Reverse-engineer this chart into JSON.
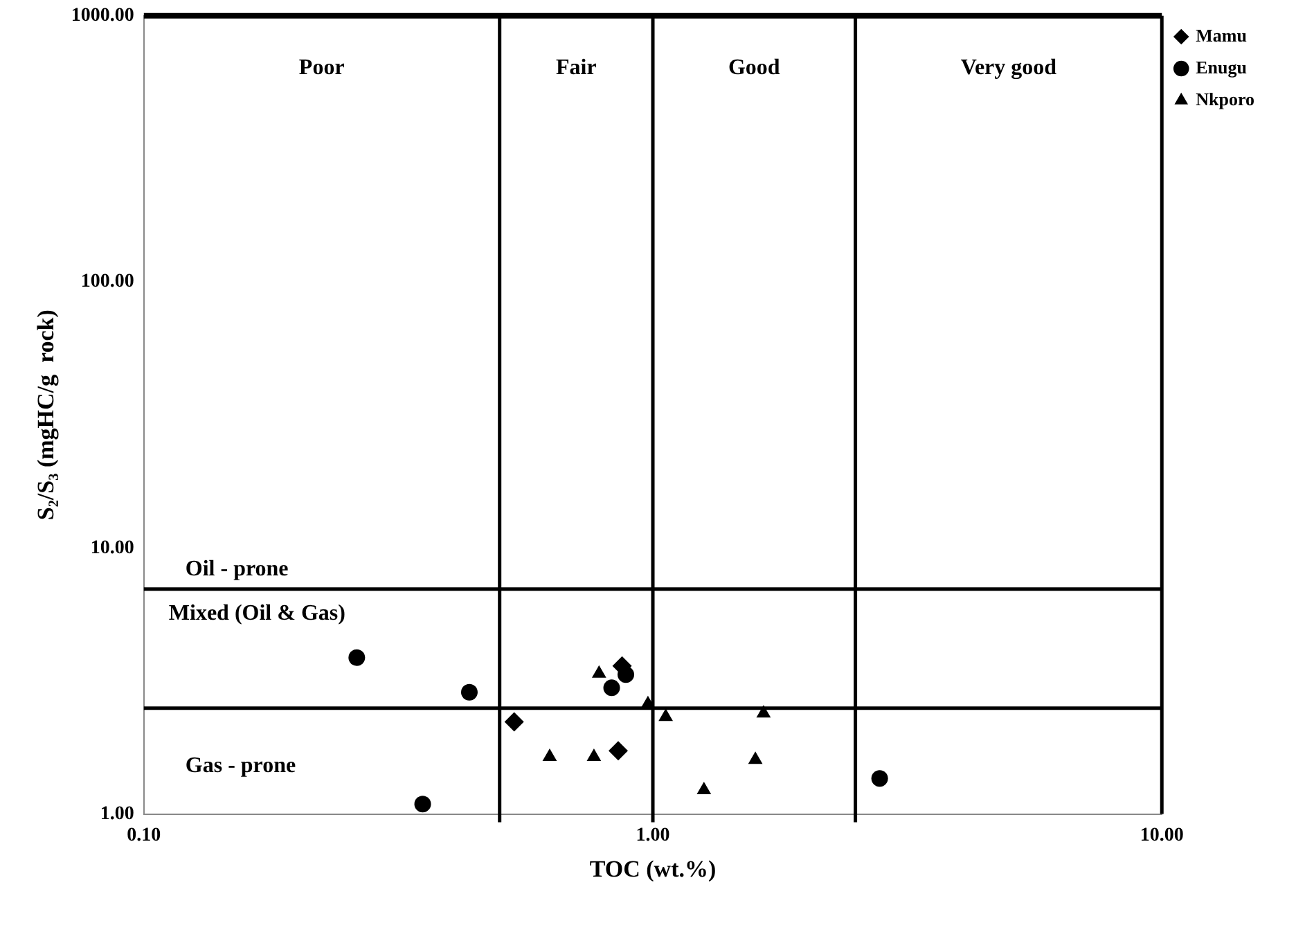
{
  "chart_data": {
    "type": "scatter",
    "xlabel": "TOC (wt.%)",
    "ylabel": "S₂/S₃ (mgHC/g  rock)",
    "log": "xy",
    "grid": false,
    "legend": "top right",
    "xlim": [
      0.1,
      10
    ],
    "xticks": [
      {
        "value": 0.1,
        "label": "0.10"
      },
      {
        "value": 1,
        "label": "1.00"
      },
      {
        "value": 10,
        "label": "10.00"
      }
    ],
    "ylim": [
      1,
      1000
    ],
    "yticks": [
      {
        "value": 1,
        "label": "1.00"
      },
      {
        "value": 10,
        "label": "10.00"
      },
      {
        "value": 100,
        "label": "100.00"
      },
      {
        "value": 1000,
        "label": "1000.00"
      }
    ],
    "series": [
      {
        "name": "Mamu",
        "color": "#000000",
        "marker": "diamond",
        "x": [
          0.534,
          0.855,
          0.87
        ],
        "values": [
          2.22,
          1.73,
          3.6
        ]
      },
      {
        "name": "Enugu",
        "color": "#000000",
        "marker": "circle",
        "x": [
          0.262,
          0.436,
          0.353,
          0.83,
          0.885,
          2.79
        ],
        "values": [
          3.87,
          2.87,
          1.09,
          2.98,
          3.34,
          1.36
        ]
      },
      {
        "name": "Nkporo",
        "color": "#000000",
        "marker": "triangle",
        "x": [
          0.784,
          0.978,
          1.06,
          1.65,
          0.627,
          0.766,
          1.59,
          1.26
        ],
        "values": [
          3.37,
          2.59,
          2.32,
          2.39,
          1.64,
          1.64,
          1.6,
          1.23
        ]
      }
    ],
    "ref_lines": [
      {
        "axis": "x",
        "value": 0.5,
        "color": "#000000"
      },
      {
        "axis": "x",
        "value": 1,
        "color": "#000000"
      },
      {
        "axis": "x",
        "value": 2.5,
        "color": "#000000"
      },
      {
        "axis": "y",
        "value": 7,
        "color": "#000000"
      },
      {
        "axis": "y",
        "value": 2.5,
        "color": "#000000"
      }
    ],
    "annotations": [
      "Poor",
      "Fair",
      "Good",
      "Very good",
      "Oil - prone",
      "Mixed (Oil & Gas)",
      "Gas - prone"
    ]
  }
}
